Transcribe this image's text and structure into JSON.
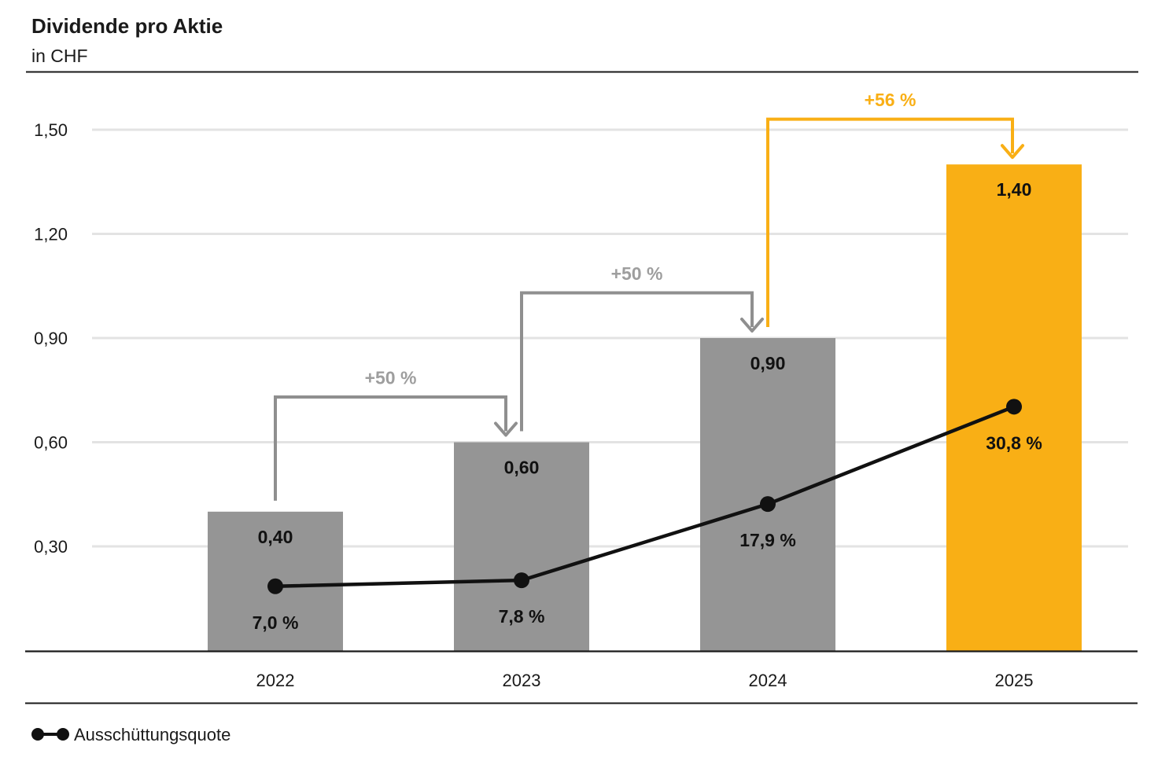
{
  "colors": {
    "bar_gray": "#959595",
    "bar_orange": "#F9AF15",
    "arrow_gray": "#8F8F8F",
    "label_gray": "#9E9E9E",
    "gridline": "#E3E3E3",
    "axis_line": "#1A1A1A",
    "text": "#1A1A1A",
    "line_series": "#111111"
  },
  "chart_data": {
    "type": "bar+line",
    "title": "Dividende pro Aktie",
    "subtitle": "in CHF",
    "categories": [
      "2022",
      "2023",
      "2024",
      "2025"
    ],
    "series": [
      {
        "name": "Dividende pro Aktie",
        "type": "bar",
        "unit": "CHF",
        "values": [
          0.4,
          0.6,
          0.9,
          1.4
        ],
        "labels": [
          "0,40",
          "0,60",
          "0,90",
          "1,40"
        ],
        "colors": [
          "gray",
          "gray",
          "gray",
          "orange"
        ]
      },
      {
        "name": "Ausschüttungsquote",
        "type": "line",
        "unit": "%",
        "values": [
          7.0,
          7.8,
          17.9,
          30.8
        ],
        "labels": [
          "7,0 %",
          "7,8 %",
          "17,9 %",
          "30,8 %"
        ]
      }
    ],
    "growth_annotations": [
      {
        "from": "2022",
        "to": "2023",
        "label": "+50 %",
        "color": "gray"
      },
      {
        "from": "2023",
        "to": "2024",
        "label": "+50 %",
        "color": "gray"
      },
      {
        "from": "2024",
        "to": "2025",
        "label": "+56 %",
        "color": "orange"
      }
    ],
    "y_axis": {
      "tick_labels": [
        "0,30",
        "0,60",
        "0,90",
        "1,20",
        "1,50"
      ],
      "tick_values": [
        0.3,
        0.6,
        0.9,
        1.2,
        1.5
      ],
      "range": [
        0,
        1.5
      ],
      "grid": true
    },
    "legend": {
      "label": "Ausschüttungsquote",
      "position": "bottom-left",
      "marker": "dot-line-dot"
    }
  }
}
